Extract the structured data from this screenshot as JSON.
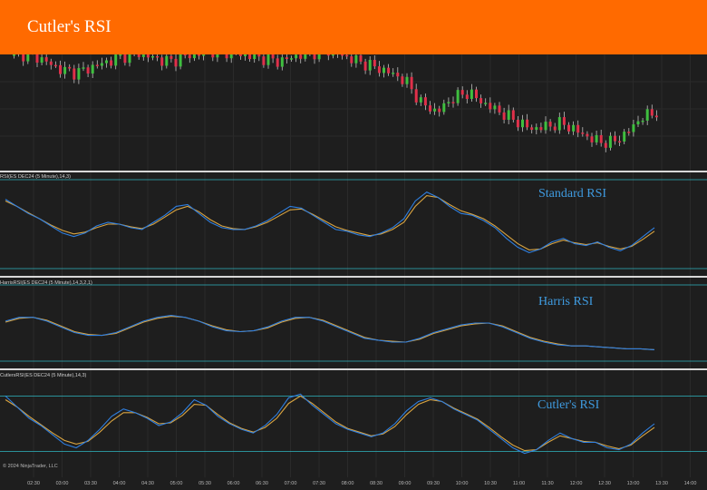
{
  "banner": {
    "title": "Cutler's RSI",
    "color": "#ff6a00"
  },
  "panels": [
    {
      "id": "standard",
      "label": "RSI(ES DEC24 (5 Minute),14,3)",
      "annotation": "Standard RSI"
    },
    {
      "id": "harris",
      "label": "HarrisRSI(ES DEC24 (5 Minute),14,3,2,1)",
      "annotation": "Harris RSI"
    },
    {
      "id": "cutler",
      "label": "CutlersRSI(ES DEC24 (5 Minute),14,3)",
      "annotation": "Cutler's RSI"
    }
  ],
  "footer": {
    "copyright": "© 2024 NinjaTrader, LLC"
  },
  "x_axis": {
    "ticks": [
      "02:30",
      "03:00",
      "03:30",
      "04:00",
      "04:30",
      "05:00",
      "05:30",
      "06:00",
      "06:30",
      "07:00",
      "07:30",
      "08:00",
      "08:30",
      "09:00",
      "09:30",
      "10:00",
      "10:30",
      "11:00",
      "11:30",
      "12:00",
      "12:30",
      "13:00",
      "13:30",
      "14:00"
    ]
  },
  "colors": {
    "background": "#1e1e1e",
    "up_candle": "#3fbf3f",
    "down_candle": "#e0304a",
    "rsi_line": "#2f7fe0",
    "signal_line": "#d9a441",
    "level_line": "#2fb5c0",
    "annotation": "#3f9be0"
  },
  "chart_data": {
    "type": "line",
    "price_candles_close_trend": [
      70,
      72,
      66,
      60,
      58,
      62,
      66,
      70,
      72,
      68,
      66,
      70,
      72,
      74,
      72,
      70,
      68,
      66,
      70,
      72,
      74,
      70,
      66,
      62,
      58,
      52,
      36,
      30,
      40,
      44,
      36,
      30,
      24,
      18,
      20,
      22,
      16,
      10,
      8,
      14,
      26,
      30
    ],
    "standard_rsi": [
      78,
      70,
      62,
      56,
      48,
      40,
      36,
      40,
      48,
      52,
      50,
      46,
      44,
      52,
      60,
      70,
      72,
      62,
      52,
      46,
      44,
      44,
      48,
      54,
      62,
      70,
      68,
      60,
      52,
      44,
      42,
      38,
      36,
      40,
      46,
      56,
      76,
      86,
      80,
      70,
      62,
      60,
      54,
      46,
      34,
      24,
      18,
      22,
      30,
      34,
      28,
      26,
      30,
      24,
      20,
      26,
      36,
      46
    ],
    "standard_signal": [
      76,
      70,
      63,
      56,
      49,
      43,
      39,
      41,
      46,
      50,
      50,
      47,
      45,
      50,
      58,
      66,
      70,
      64,
      55,
      48,
      45,
      44,
      47,
      52,
      59,
      66,
      67,
      61,
      54,
      47,
      43,
      40,
      37,
      39,
      44,
      52,
      70,
      82,
      80,
      72,
      65,
      61,
      56,
      48,
      38,
      28,
      21,
      22,
      28,
      32,
      29,
      27,
      29,
      25,
      22,
      25,
      33,
      42
    ],
    "harris_rsi": [
      62,
      66,
      66,
      62,
      56,
      50,
      47,
      47,
      50,
      56,
      62,
      66,
      68,
      66,
      62,
      56,
      52,
      51,
      52,
      56,
      62,
      66,
      66,
      62,
      56,
      50,
      44,
      42,
      40,
      40,
      44,
      50,
      54,
      58,
      60,
      60,
      56,
      50,
      44,
      40,
      37,
      36,
      36,
      35,
      34,
      33,
      33,
      32
    ],
    "harris_signal": [
      61,
      65,
      66,
      63,
      57,
      51,
      48,
      47,
      49,
      55,
      61,
      65,
      67,
      66,
      62,
      57,
      53,
      51,
      52,
      55,
      61,
      65,
      66,
      63,
      57,
      51,
      45,
      42,
      41,
      40,
      43,
      49,
      53,
      57,
      59,
      60,
      57,
      51,
      45,
      41,
      38,
      36,
      36,
      35,
      34,
      33,
      33,
      32
    ],
    "cutler_rsi": [
      80,
      68,
      56,
      48,
      38,
      28,
      24,
      32,
      44,
      58,
      66,
      62,
      56,
      48,
      52,
      62,
      76,
      70,
      58,
      50,
      44,
      40,
      48,
      60,
      78,
      82,
      70,
      60,
      50,
      44,
      40,
      36,
      40,
      50,
      64,
      74,
      78,
      74,
      66,
      60,
      54,
      44,
      34,
      24,
      18,
      22,
      32,
      40,
      34,
      30,
      30,
      24,
      22,
      28,
      40,
      50
    ],
    "cutler_signal": [
      76,
      68,
      58,
      49,
      40,
      32,
      28,
      31,
      41,
      53,
      62,
      62,
      57,
      50,
      51,
      59,
      71,
      70,
      60,
      51,
      45,
      41,
      46,
      56,
      72,
      80,
      72,
      62,
      52,
      45,
      41,
      37,
      39,
      47,
      60,
      71,
      76,
      74,
      67,
      61,
      55,
      46,
      36,
      27,
      21,
      22,
      30,
      37,
      34,
      31,
      30,
      26,
      23,
      27,
      37,
      46
    ]
  }
}
